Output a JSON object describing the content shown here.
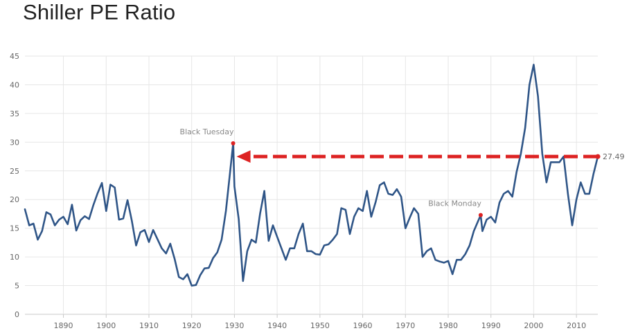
{
  "chart_data": {
    "type": "line",
    "title": "Shiller PE Ratio",
    "xlabel": "",
    "ylabel": "",
    "xlim": [
      1881,
      2015
    ],
    "ylim": [
      0,
      45
    ],
    "grid": true,
    "x_ticks": [
      1890,
      1900,
      1910,
      1920,
      1930,
      1940,
      1950,
      1960,
      1970,
      1980,
      1990,
      2000,
      2010
    ],
    "y_ticks": [
      0,
      5,
      10,
      15,
      20,
      25,
      30,
      35,
      40,
      45
    ],
    "series": [
      {
        "name": "Shiller PE Ratio",
        "color": "#2f5587",
        "x": [
          1881,
          1882,
          1883,
          1884,
          1885,
          1886,
          1887,
          1888,
          1889,
          1890,
          1891,
          1892,
          1893,
          1894,
          1895,
          1896,
          1897,
          1898,
          1899,
          1900,
          1901,
          1902,
          1903,
          1904,
          1905,
          1906,
          1907,
          1908,
          1909,
          1910,
          1911,
          1912,
          1913,
          1914,
          1915,
          1916,
          1917,
          1918,
          1919,
          1920,
          1921,
          1922,
          1923,
          1924,
          1925,
          1926,
          1927,
          1928,
          1929.7,
          1930,
          1931,
          1932,
          1933,
          1934,
          1935,
          1936,
          1937,
          1938,
          1939,
          1940,
          1941,
          1942,
          1943,
          1944,
          1945,
          1946,
          1947,
          1948,
          1949,
          1950,
          1951,
          1952,
          1953,
          1954,
          1955,
          1956,
          1957,
          1958,
          1959,
          1960,
          1961,
          1962,
          1963,
          1964,
          1965,
          1966,
          1967,
          1968,
          1969,
          1970,
          1971,
          1972,
          1973,
          1974,
          1975,
          1976,
          1977,
          1978,
          1979,
          1980,
          1981,
          1982,
          1983,
          1984,
          1985,
          1986,
          1987.6,
          1988,
          1989,
          1990,
          1991,
          1992,
          1993,
          1994,
          1995,
          1996,
          1997,
          1998,
          1999,
          2000,
          2001,
          2002,
          2003,
          2004,
          2005,
          2006,
          2007,
          2008,
          2009,
          2010,
          2011,
          2012,
          2013,
          2014,
          2015
        ],
        "values": [
          18.3,
          15.5,
          15.8,
          13.0,
          14.5,
          17.8,
          17.4,
          15.5,
          16.5,
          17.0,
          15.7,
          19.1,
          14.6,
          16.4,
          17.1,
          16.6,
          19.0,
          21.1,
          22.9,
          18.0,
          22.6,
          22.1,
          16.5,
          16.7,
          19.9,
          16.3,
          12.0,
          14.3,
          14.7,
          12.6,
          14.7,
          13.1,
          11.5,
          10.6,
          12.3,
          9.7,
          6.5,
          6.1,
          7.0,
          5.0,
          5.1,
          6.8,
          8.0,
          8.1,
          9.8,
          10.8,
          13.0,
          18.0,
          29.8,
          22.3,
          16.6,
          5.8,
          11.0,
          13.0,
          12.5,
          17.5,
          21.5,
          12.8,
          15.5,
          13.5,
          11.5,
          9.5,
          11.5,
          11.5,
          14.0,
          15.8,
          11.0,
          11.0,
          10.5,
          10.4,
          12.0,
          12.2,
          13.0,
          14.0,
          18.5,
          18.2,
          14.0,
          17.0,
          18.5,
          18.0,
          21.5,
          17.0,
          19.5,
          22.5,
          23.0,
          21.0,
          20.8,
          21.8,
          20.5,
          15.0,
          16.8,
          18.5,
          17.5,
          10.0,
          11.0,
          11.5,
          9.5,
          9.2,
          9.0,
          9.3,
          7.0,
          9.5,
          9.5,
          10.5,
          12.0,
          14.5,
          17.3,
          14.5,
          16.5,
          17.0,
          16.0,
          19.5,
          21.0,
          21.5,
          20.5,
          24.8,
          28.0,
          32.5,
          40.0,
          43.5,
          38.0,
          28.0,
          23.0,
          26.5,
          26.5,
          26.5,
          27.5,
          21.0,
          15.5,
          20.0,
          23.0,
          21.0,
          21.0,
          24.5,
          27.49
        ]
      }
    ],
    "annotations": [
      {
        "label": "Black Tuesday",
        "x": 1929.7,
        "y": 29.8
      },
      {
        "label": "Black Monday",
        "x": 1987.6,
        "y": 17.3
      }
    ],
    "reference_line": {
      "value": 27.49,
      "label": "27.49",
      "color": "#dd2222",
      "style": "dashed-arrow"
    }
  }
}
